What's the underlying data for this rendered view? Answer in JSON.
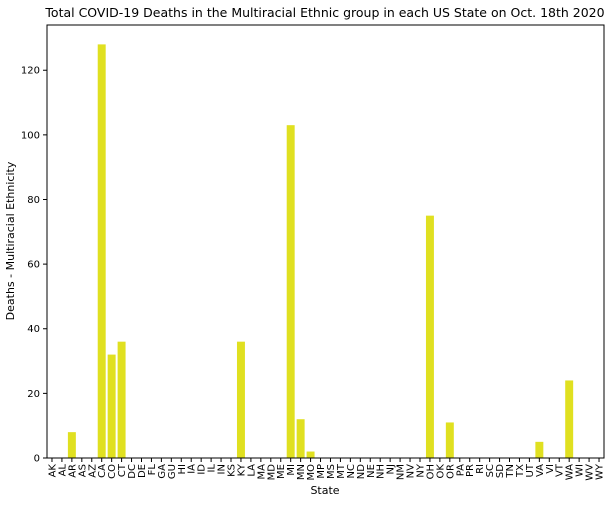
{
  "chart_data": {
    "type": "bar",
    "title": "Total COVID-19 Deaths in the Multiracial Ethnic group in each US State on Oct. 18th 2020",
    "xlabel": "State",
    "ylabel": "Deaths - Multiracial Ethnicity",
    "ylim": [
      0,
      134
    ],
    "yticks": [
      0,
      20,
      40,
      60,
      80,
      100,
      120
    ],
    "grid": false,
    "bar_color": "#e0e020",
    "categories": [
      "AK",
      "AL",
      "AR",
      "AS",
      "AZ",
      "CA",
      "CO",
      "CT",
      "DC",
      "DE",
      "FL",
      "GA",
      "GU",
      "HI",
      "IA",
      "ID",
      "IL",
      "IN",
      "KS",
      "KY",
      "LA",
      "MA",
      "MD",
      "ME",
      "MI",
      "MN",
      "MO",
      "MP",
      "MS",
      "MT",
      "NC",
      "ND",
      "NE",
      "NH",
      "NJ",
      "NM",
      "NV",
      "NY",
      "OH",
      "OK",
      "OR",
      "PA",
      "PR",
      "RI",
      "SC",
      "SD",
      "TN",
      "TX",
      "UT",
      "VA",
      "VI",
      "VT",
      "WA",
      "WI",
      "WV",
      "WY"
    ],
    "values": [
      0,
      0,
      8,
      0,
      0,
      128,
      32,
      36,
      0,
      0,
      0,
      0,
      0,
      0,
      0,
      0,
      0,
      0,
      0,
      36,
      0,
      0,
      0,
      0,
      103,
      12,
      2,
      0,
      0,
      0,
      0,
      0,
      0,
      0,
      0,
      0,
      0,
      0,
      75,
      0,
      11,
      0,
      0,
      0,
      0,
      0,
      0,
      0,
      0,
      5,
      0,
      0,
      24,
      0,
      0,
      0
    ]
  }
}
